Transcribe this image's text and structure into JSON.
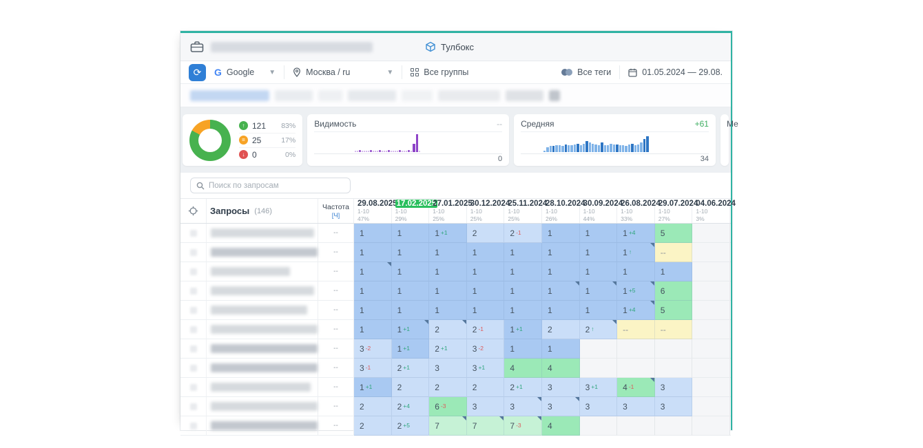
{
  "window": {
    "titlebar": {
      "toolbox_label": "Тулбокс"
    },
    "toolbar": {
      "search_engine": "Google",
      "region": "Москва / ru",
      "groups": "Все группы",
      "tags": "Все теги",
      "date_range": "01.05.2024 — 29.08."
    },
    "summary": {
      "donut": {
        "segments": [
          {
            "name": "up",
            "glyph": "↑",
            "color": "#47b24f",
            "value": "121",
            "pct": "83%"
          },
          {
            "name": "same",
            "glyph": "=",
            "color": "#f7a325",
            "value": "25",
            "pct": "17%"
          },
          {
            "name": "down",
            "glyph": "↓",
            "color": "#e05252",
            "value": "0",
            "pct": "0%"
          }
        ]
      },
      "visibility": {
        "title": "Видимость",
        "top_right": "--",
        "bottom_right": "0",
        "color_light": "#c9a6e8",
        "color_dark": "#8e44c8",
        "points": [
          -1,
          -1,
          -1,
          -1,
          -1,
          -1,
          -1,
          -1,
          -1,
          -1,
          -1,
          -1,
          -1,
          0,
          0,
          1,
          0,
          0,
          0,
          0,
          1,
          0,
          0,
          0,
          1,
          0,
          0,
          0,
          1,
          0,
          0,
          0,
          0,
          1,
          0,
          0,
          0,
          1,
          0,
          45,
          100,
          0
        ]
      },
      "average": {
        "title": "Средняя",
        "top_right": "+61",
        "bottom_right": "34",
        "color_light": "#7fb3e8",
        "color_dark": "#2e76c4",
        "bars": [
          -1,
          -1,
          -1,
          -1,
          -1,
          -1,
          -1,
          6,
          28,
          36,
          33,
          40,
          38,
          36,
          44,
          38,
          40,
          42,
          45,
          40,
          46,
          62,
          52,
          48,
          44,
          40,
          52,
          38,
          40,
          46,
          42,
          44,
          40,
          38,
          36,
          44,
          48,
          40,
          44,
          52,
          72,
          88
        ],
        "dark_index": [
          10,
          14,
          18,
          21,
          26,
          31,
          36,
          40,
          41
        ]
      },
      "next_card_label": "Ме"
    },
    "search": {
      "placeholder": "Поиск по запросам"
    },
    "table": {
      "queries_label": "Запросы",
      "queries_count": "(146)",
      "freq_label": "Частота",
      "freq_unit": "[Ч]",
      "freq_value": "--",
      "columns": [
        {
          "date": "29.08.2025",
          "range": "1-10",
          "pct": "47%",
          "highlight": false
        },
        {
          "date": "17.02.2025",
          "range": "1-10",
          "pct": "29%",
          "highlight": true
        },
        {
          "date": "27.01.2025",
          "range": "1-10",
          "pct": "25%",
          "highlight": false
        },
        {
          "date": "30.12.2024",
          "range": "1-10",
          "pct": "25%",
          "highlight": false
        },
        {
          "date": "25.11.2024",
          "range": "1-10",
          "pct": "25%",
          "highlight": false
        },
        {
          "date": "28.10.2024",
          "range": "1-10",
          "pct": "26%",
          "highlight": false
        },
        {
          "date": "30.09.2024",
          "range": "1-10",
          "pct": "44%",
          "highlight": false
        },
        {
          "date": "26.08.2024",
          "range": "1-10",
          "pct": "33%",
          "highlight": false
        },
        {
          "date": "29.07.2024",
          "range": "1-10",
          "pct": "27%",
          "highlight": false
        },
        {
          "date": "04.06.2024",
          "range": "1-10",
          "pct": "3%",
          "highlight": false
        }
      ],
      "rows": [
        {
          "name_w": 150,
          "dark": false,
          "cells": [
            {
              "v": "1",
              "bg": "b1"
            },
            {
              "v": "1",
              "bg": "b1"
            },
            {
              "v": "1",
              "bg": "b1",
              "sup": "+1"
            },
            {
              "v": "2",
              "bg": "b2"
            },
            {
              "v": "2",
              "bg": "b2",
              "sup": "-1"
            },
            {
              "v": "1",
              "bg": "b1"
            },
            {
              "v": "1",
              "bg": "b1"
            },
            {
              "v": "1",
              "bg": "b1",
              "sup": "+4"
            },
            {
              "v": "5",
              "bg": "g1"
            },
            {
              "bg": "e"
            }
          ]
        },
        {
          "name_w": 185,
          "dark": true,
          "cells": [
            {
              "v": "1",
              "bg": "b1"
            },
            {
              "v": "1",
              "bg": "b1"
            },
            {
              "v": "1",
              "bg": "b1"
            },
            {
              "v": "1",
              "bg": "b1"
            },
            {
              "v": "1",
              "bg": "b1"
            },
            {
              "v": "1",
              "bg": "b1"
            },
            {
              "v": "1",
              "bg": "b1"
            },
            {
              "v": "1",
              "bg": "b1",
              "sup": "↑",
              "mark": true
            },
            {
              "v": "--",
              "bg": "y"
            },
            {
              "bg": "e"
            }
          ]
        },
        {
          "name_w": 115,
          "dark": false,
          "cells": [
            {
              "v": "1",
              "bg": "b1",
              "mark": true
            },
            {
              "v": "1",
              "bg": "b1"
            },
            {
              "v": "1",
              "bg": "b1"
            },
            {
              "v": "1",
              "bg": "b1"
            },
            {
              "v": "1",
              "bg": "b1"
            },
            {
              "v": "1",
              "bg": "b1"
            },
            {
              "v": "1",
              "bg": "b1"
            },
            {
              "v": "1",
              "bg": "b1"
            },
            {
              "v": "1",
              "bg": "b1"
            },
            {
              "bg": "e"
            }
          ]
        },
        {
          "name_w": 150,
          "dark": false,
          "cells": [
            {
              "v": "1",
              "bg": "b1"
            },
            {
              "v": "1",
              "bg": "b1"
            },
            {
              "v": "1",
              "bg": "b1"
            },
            {
              "v": "1",
              "bg": "b1"
            },
            {
              "v": "1",
              "bg": "b1"
            },
            {
              "v": "1",
              "bg": "b1",
              "mark": true
            },
            {
              "v": "1",
              "bg": "b1",
              "mark": true
            },
            {
              "v": "1",
              "bg": "b1",
              "sup": "+5",
              "mark": true
            },
            {
              "v": "6",
              "bg": "g1"
            },
            {
              "bg": "e"
            }
          ]
        },
        {
          "name_w": 140,
          "dark": false,
          "cells": [
            {
              "v": "1",
              "bg": "b1"
            },
            {
              "v": "1",
              "bg": "b1"
            },
            {
              "v": "1",
              "bg": "b1"
            },
            {
              "v": "1",
              "bg": "b1"
            },
            {
              "v": "1",
              "bg": "b1"
            },
            {
              "v": "1",
              "bg": "b1"
            },
            {
              "v": "1",
              "bg": "b1"
            },
            {
              "v": "1",
              "bg": "b1",
              "sup": "+4",
              "mark": true
            },
            {
              "v": "5",
              "bg": "g1"
            },
            {
              "bg": "e"
            }
          ]
        },
        {
          "name_w": 170,
          "dark": false,
          "cells": [
            {
              "v": "1",
              "bg": "b1"
            },
            {
              "v": "1",
              "bg": "b1",
              "sup": "+1",
              "mark": true
            },
            {
              "v": "2",
              "bg": "b2",
              "mark": true
            },
            {
              "v": "2",
              "bg": "b2",
              "sup": "-1"
            },
            {
              "v": "1",
              "bg": "b1",
              "sup": "+1"
            },
            {
              "v": "2",
              "bg": "b2"
            },
            {
              "v": "2",
              "bg": "b2",
              "sup": "↑",
              "mark": true
            },
            {
              "v": "--",
              "bg": "y"
            },
            {
              "v": "--",
              "bg": "y"
            },
            {
              "bg": "e"
            }
          ]
        },
        {
          "name_w": 170,
          "dark": true,
          "cells": [
            {
              "v": "3",
              "bg": "b2",
              "sup": "-2"
            },
            {
              "v": "1",
              "bg": "b1",
              "sup": "+1"
            },
            {
              "v": "2",
              "bg": "b2",
              "sup": "+1"
            },
            {
              "v": "3",
              "bg": "b2",
              "sup": "-2"
            },
            {
              "v": "1",
              "bg": "b1"
            },
            {
              "v": "1",
              "bg": "b1"
            },
            {
              "bg": "e"
            },
            {
              "bg": "e"
            },
            {
              "bg": "e"
            },
            {
              "bg": "e"
            }
          ]
        },
        {
          "name_w": 195,
          "dark": true,
          "cells": [
            {
              "v": "3",
              "bg": "b2",
              "sup": "-1"
            },
            {
              "v": "2",
              "bg": "b2",
              "sup": "+1"
            },
            {
              "v": "3",
              "bg": "b2"
            },
            {
              "v": "3",
              "bg": "b2",
              "sup": "+1"
            },
            {
              "v": "4",
              "bg": "g1"
            },
            {
              "v": "4",
              "bg": "g1"
            },
            {
              "bg": "e"
            },
            {
              "bg": "e"
            },
            {
              "bg": "e"
            },
            {
              "bg": "e"
            }
          ]
        },
        {
          "name_w": 145,
          "dark": false,
          "cells": [
            {
              "v": "1",
              "bg": "b1",
              "sup": "+1"
            },
            {
              "v": "2",
              "bg": "b2"
            },
            {
              "v": "2",
              "bg": "b2"
            },
            {
              "v": "2",
              "bg": "b2"
            },
            {
              "v": "2",
              "bg": "b2",
              "sup": "+1"
            },
            {
              "v": "3",
              "bg": "b2"
            },
            {
              "v": "3",
              "bg": "b2",
              "sup": "+1"
            },
            {
              "v": "4",
              "bg": "g1",
              "sup": "-1",
              "mark": true
            },
            {
              "v": "3",
              "bg": "b2"
            },
            {
              "bg": "e"
            }
          ]
        },
        {
          "name_w": 160,
          "dark": false,
          "cells": [
            {
              "v": "2",
              "bg": "b2"
            },
            {
              "v": "2",
              "bg": "b2",
              "sup": "+4"
            },
            {
              "v": "6",
              "bg": "g1",
              "sup": "-3"
            },
            {
              "v": "3",
              "bg": "b2"
            },
            {
              "v": "3",
              "bg": "b2",
              "mark": true
            },
            {
              "v": "3",
              "bg": "b2",
              "mark": true
            },
            {
              "v": "3",
              "bg": "b2"
            },
            {
              "v": "3",
              "bg": "b2"
            },
            {
              "v": "3",
              "bg": "b2"
            },
            {
              "bg": "e"
            }
          ]
        },
        {
          "name_w": 175,
          "dark": true,
          "cells": [
            {
              "v": "2",
              "bg": "b2"
            },
            {
              "v": "2",
              "bg": "b2",
              "sup": "+5"
            },
            {
              "v": "7",
              "bg": "g2",
              "mark": true
            },
            {
              "v": "7",
              "bg": "g2",
              "mark": true
            },
            {
              "v": "7",
              "bg": "g2",
              "sup": "-3",
              "mark": true
            },
            {
              "v": "4",
              "bg": "g1"
            },
            {
              "bg": "e"
            },
            {
              "bg": "e"
            },
            {
              "bg": "e"
            },
            {
              "bg": "e"
            }
          ]
        }
      ]
    }
  }
}
